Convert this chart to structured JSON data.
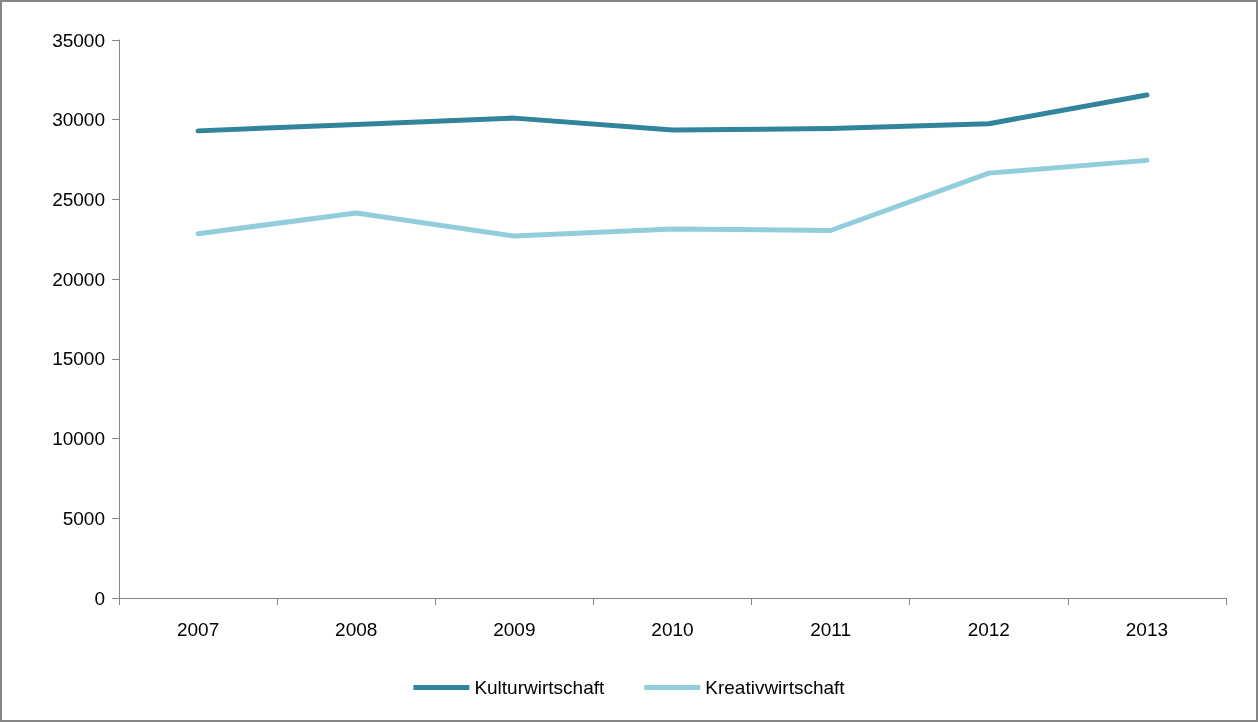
{
  "chart_data": {
    "type": "line",
    "categories": [
      "2007",
      "2008",
      "2009",
      "2010",
      "2011",
      "2012",
      "2013"
    ],
    "series": [
      {
        "name": "Kulturwirtschaft",
        "color": "#31849b",
        "values": [
          29300,
          29700,
          30100,
          29350,
          29450,
          29750,
          31550
        ]
      },
      {
        "name": "Kreativwirtschaft",
        "color": "#92cddc",
        "values": [
          22850,
          24150,
          22700,
          23150,
          23050,
          26650,
          27450
        ]
      }
    ],
    "ylim": [
      0,
      35000
    ],
    "yticks": [
      0,
      5000,
      10000,
      15000,
      20000,
      25000,
      30000,
      35000
    ],
    "grid": false,
    "legend": "bottom",
    "marker": "none",
    "line_style": "solid"
  }
}
